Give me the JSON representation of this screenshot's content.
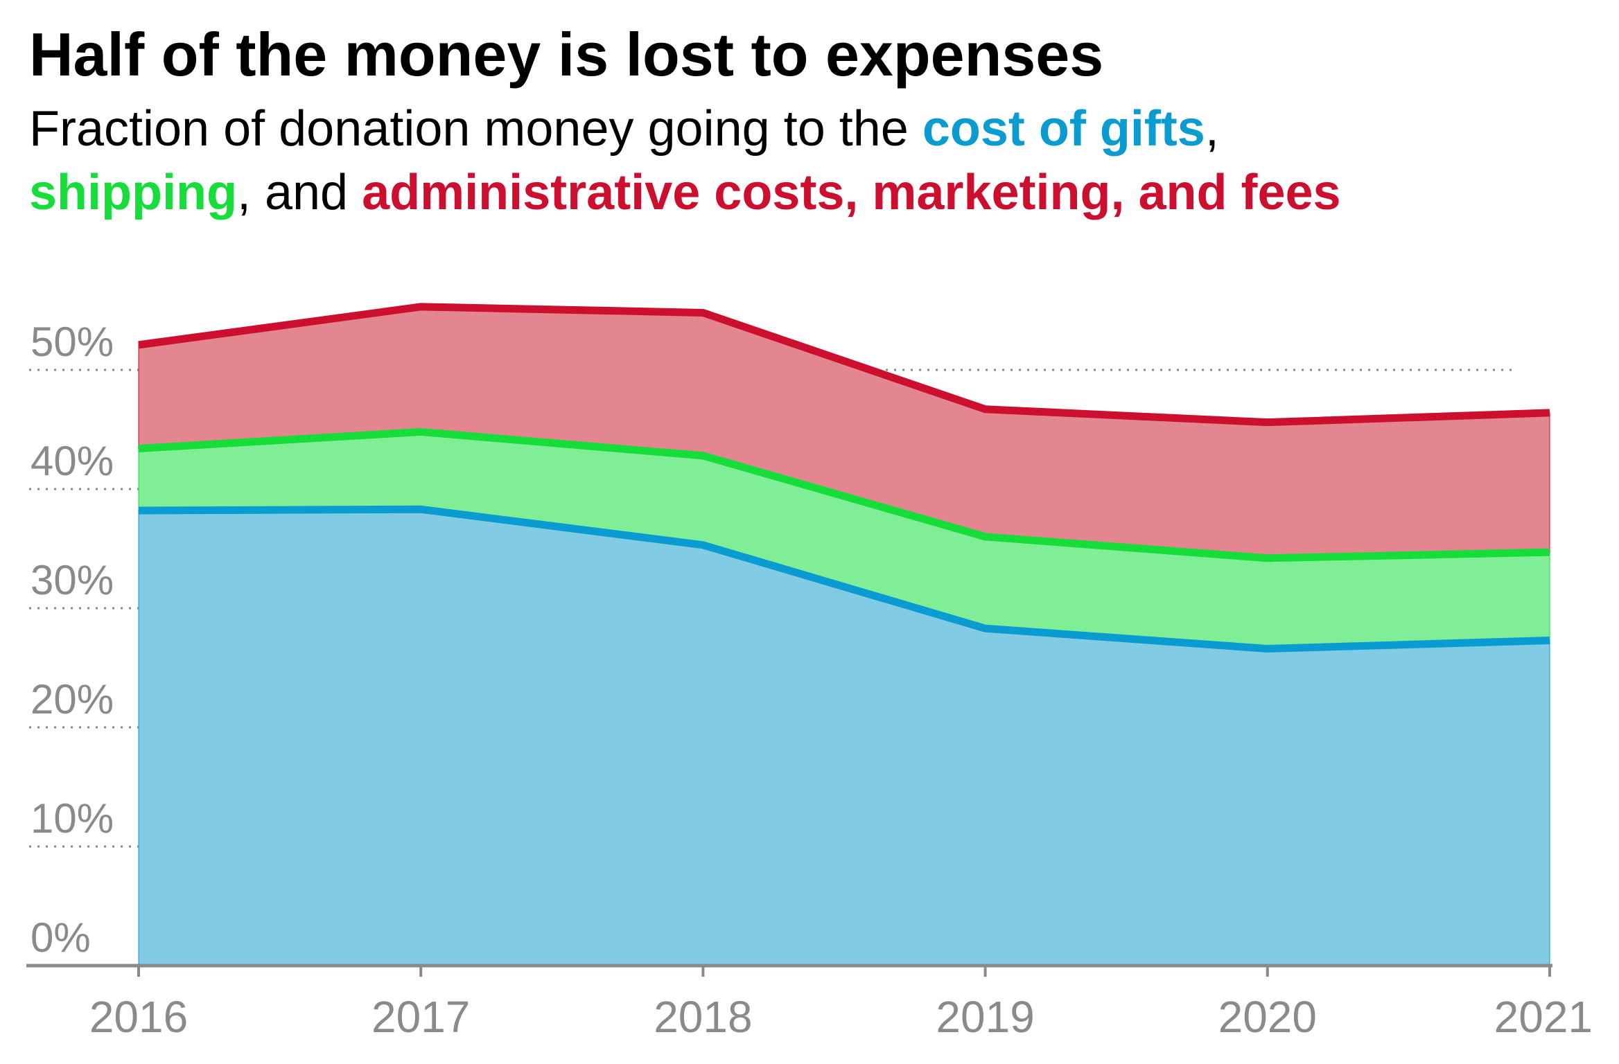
{
  "title": "Half of the money is lost to expenses",
  "subtitle": {
    "before": "Fraction of donation money going to the ",
    "gifts": "cost of gifts",
    "sep1": ",",
    "shipping": "shipping",
    "sep2": ", and ",
    "admin": "administrative costs, marketing, and fees"
  },
  "colors": {
    "gifts_line": "#0a9bd0",
    "gifts_fill": "#82cbe5",
    "shipping_line": "#16dd3a",
    "shipping_fill": "#7fee96",
    "admin_line": "#cc0f2e",
    "admin_fill": "#e3868f",
    "axis": "#8a8a8a",
    "grid": "#8a8a8a"
  },
  "chart_data": {
    "type": "area",
    "stacked": true,
    "x": [
      "2016",
      "2017",
      "2018",
      "2019",
      "2020",
      "2021"
    ],
    "series": [
      {
        "name": "cost of gifts",
        "values": [
          38.2,
          38.3,
          35.3,
          28.3,
          26.6,
          27.3
        ]
      },
      {
        "name": "shipping",
        "values": [
          5.2,
          6.5,
          7.5,
          7.7,
          7.6,
          7.4
        ]
      },
      {
        "name": "administrative costs, marketing, and fees",
        "values": [
          8.7,
          10.5,
          12.0,
          10.7,
          11.4,
          11.7
        ]
      }
    ],
    "ylim": [
      0,
      55
    ],
    "yticks": [
      0,
      10,
      20,
      30,
      40,
      50
    ],
    "ytick_labels": [
      "0%",
      "10%",
      "20%",
      "30%",
      "40%",
      "50%"
    ],
    "grid": true,
    "grid_style": "dotted",
    "legend": "in subtitle"
  }
}
